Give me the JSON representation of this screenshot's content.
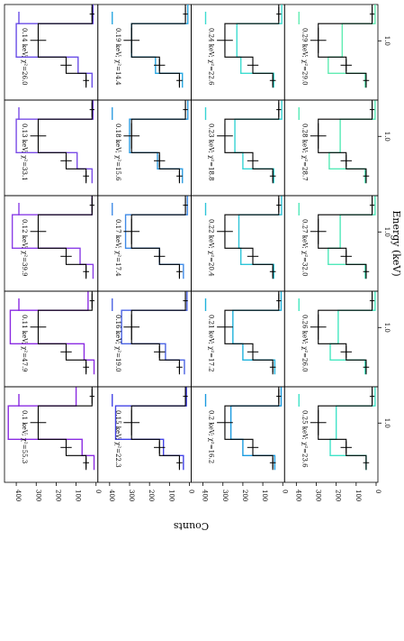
{
  "chart_data": {
    "type": "step-histogram",
    "orientation": "rotated-90-cw",
    "layout": {
      "groups": 5,
      "per_group": 4
    },
    "xlabel": "Energy (keV)",
    "ylabel": "Counts",
    "ylim": [
      0,
      450
    ],
    "y_ticks": [
      0,
      100,
      200,
      300,
      400
    ],
    "x_tick_label": "1.0",
    "grid": false,
    "observed": {
      "color": "#000000",
      "bins": [
        {
          "value": 20,
          "err": 12
        },
        {
          "value": 290,
          "err": 40
        },
        {
          "value": 150,
          "err": 28
        },
        {
          "value": 50,
          "err": 15
        }
      ]
    },
    "panels": [
      {
        "label": "0.1 keV; χ²=55.3",
        "color": "#8a2be2",
        "values": [
          100,
          440,
          70,
          10
        ]
      },
      {
        "label": "0.15 keV; χ²=22.3",
        "color": "#4343e6",
        "values": [
          15,
          370,
          130,
          30
        ]
      },
      {
        "label": "0.2 keV; χ²=16.2",
        "color": "#1a9be0",
        "values": [
          8,
          260,
          200,
          40
        ]
      },
      {
        "label": "0.25 keV; χ²=23.6",
        "color": "#3fe3c8",
        "values": [
          5,
          200,
          230,
          50
        ]
      },
      {
        "label": "0.11 keV; χ²=47.9",
        "color": "#8a2be2",
        "values": [
          40,
          430,
          60,
          10
        ]
      },
      {
        "label": "0.16 keV; χ²=19.0",
        "color": "#4a62e3",
        "values": [
          12,
          340,
          120,
          25
        ]
      },
      {
        "label": "0.21 keV; χ²=17.2",
        "color": "#1fb2dc",
        "values": [
          8,
          250,
          200,
          40
        ]
      },
      {
        "label": "0.26 keV; χ²=26.0",
        "color": "#45e8c0",
        "values": [
          5,
          190,
          230,
          55
        ]
      },
      {
        "label": "0.12 keV; χ²=39.9",
        "color": "#8a3ee6",
        "values": [
          20,
          420,
          80,
          15
        ]
      },
      {
        "label": "0.17 keV; χ²=17.4",
        "color": "#3f8ae6",
        "values": [
          10,
          320,
          150,
          30
        ]
      },
      {
        "label": "0.22 keV; χ²=20.4",
        "color": "#2ec4d8",
        "values": [
          6,
          220,
          210,
          45
        ]
      },
      {
        "label": "0.27 keV; χ²=32.0",
        "color": "#4fe8b9",
        "values": [
          5,
          180,
          240,
          55
        ]
      },
      {
        "label": "0.13 keV; χ²=33.1",
        "color": "#7a4ce6",
        "values": [
          15,
          400,
          95,
          20
        ]
      },
      {
        "label": "0.18 keV; χ²=15.6",
        "color": "#2e9ce0",
        "values": [
          8,
          300,
          160,
          35
        ]
      },
      {
        "label": "0.23 keV; χ²=18.8",
        "color": "#36d4d4",
        "values": [
          5,
          240,
          200,
          45
        ]
      },
      {
        "label": "0.28 keV; χ²=28.7",
        "color": "#55eab6",
        "values": [
          5,
          180,
          235,
          55
        ]
      },
      {
        "label": "0.14 keV; χ²=26.0",
        "color": "#6a4ee6",
        "values": [
          15,
          400,
          90,
          20
        ]
      },
      {
        "label": "0.19 keV; χ²=14.4",
        "color": "#27a6e0",
        "values": [
          8,
          290,
          170,
          35
        ]
      },
      {
        "label": "0.24 keV; χ²=22.6",
        "color": "#3ddcd0",
        "values": [
          5,
          230,
          210,
          45
        ]
      },
      {
        "label": "0.29 keV; χ²=29.0",
        "color": "#60ecb2",
        "values": [
          5,
          170,
          240,
          55
        ]
      }
    ]
  }
}
